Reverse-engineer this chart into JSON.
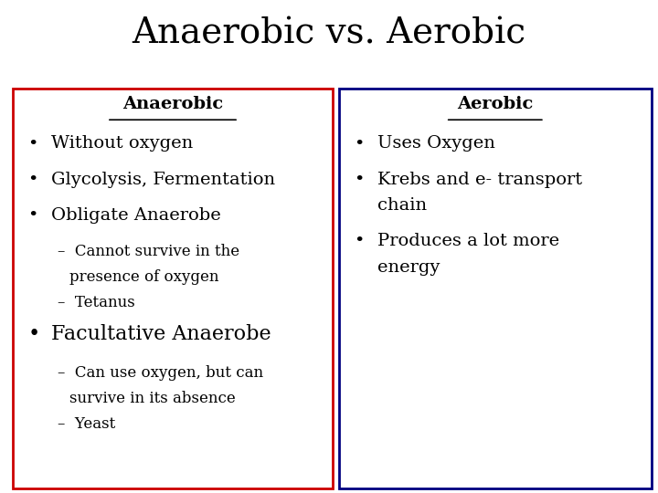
{
  "title": "Anaerobic vs. Aerobic",
  "title_fontsize": 28,
  "title_font": "DejaVu Serif",
  "background_color": "#ffffff",
  "left_header": "Anaerobic",
  "right_header": "Aerobic",
  "header_fontsize": 14,
  "left_box_color": "#cc0000",
  "right_box_color": "#000080",
  "left_items": [
    {
      "type": "bullet",
      "text": "Without oxygen",
      "size": 14
    },
    {
      "type": "bullet",
      "text": "Glycolysis, Fermentation",
      "size": 14
    },
    {
      "type": "bullet",
      "text": "Obligate Anaerobe",
      "size": 14
    },
    {
      "type": "sub",
      "line1": "–  Cannot survive in the",
      "line2": "presence of oxygen",
      "size": 12
    },
    {
      "type": "sub",
      "line1": "–  Tetanus",
      "line2": "",
      "size": 12
    },
    {
      "type": "bullet_large",
      "text": "Facultative Anaerobe",
      "size": 16
    },
    {
      "type": "sub",
      "line1": "–  Can use oxygen, but can",
      "line2": "survive in its absence",
      "size": 12
    },
    {
      "type": "sub",
      "line1": "–  Yeast",
      "line2": "",
      "size": 12
    }
  ],
  "right_items": [
    {
      "type": "bullet",
      "line1": "Uses Oxygen",
      "line2": "",
      "size": 14
    },
    {
      "type": "bullet",
      "line1": "Krebs and e- transport",
      "line2": "chain",
      "size": 14
    },
    {
      "type": "bullet",
      "line1": "Produces a lot more",
      "line2": "energy",
      "size": 14
    }
  ]
}
